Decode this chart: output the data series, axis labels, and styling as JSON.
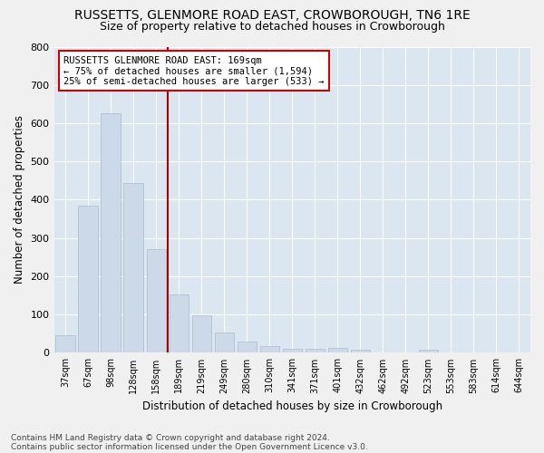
{
  "title": "RUSSETTS, GLENMORE ROAD EAST, CROWBOROUGH, TN6 1RE",
  "subtitle": "Size of property relative to detached houses in Crowborough",
  "xlabel": "Distribution of detached houses by size in Crowborough",
  "ylabel": "Number of detached properties",
  "footnote1": "Contains HM Land Registry data © Crown copyright and database right 2024.",
  "footnote2": "Contains public sector information licensed under the Open Government Licence v3.0.",
  "categories": [
    "37sqm",
    "67sqm",
    "98sqm",
    "128sqm",
    "158sqm",
    "189sqm",
    "219sqm",
    "249sqm",
    "280sqm",
    "310sqm",
    "341sqm",
    "371sqm",
    "401sqm",
    "432sqm",
    "462sqm",
    "492sqm",
    "523sqm",
    "553sqm",
    "583sqm",
    "614sqm",
    "644sqm"
  ],
  "values": [
    47,
    385,
    625,
    443,
    270,
    153,
    98,
    52,
    29,
    17,
    11,
    11,
    14,
    8,
    0,
    0,
    8,
    0,
    0,
    0,
    0
  ],
  "bar_color": "#ccd9e8",
  "bar_edgecolor": "#aabcce",
  "vline_x_idx": 4.5,
  "vline_color": "#aa0000",
  "annotation_text": "RUSSETTS GLENMORE ROAD EAST: 169sqm\n← 75% of detached houses are smaller (1,594)\n25% of semi-detached houses are larger (533) →",
  "annotation_box_edgecolor": "#cc0000",
  "annotation_box_facecolor": "#ffffff",
  "annotation_fontsize": 7.5,
  "ylim": [
    0,
    800
  ],
  "yticks": [
    0,
    100,
    200,
    300,
    400,
    500,
    600,
    700,
    800
  ],
  "axes_facecolor": "#dce6f0",
  "fig_facecolor": "#f0f0f0",
  "grid_color": "#ffffff",
  "title_fontsize": 10,
  "subtitle_fontsize": 9,
  "xlabel_fontsize": 8.5,
  "ylabel_fontsize": 8.5,
  "footnote_fontsize": 6.5
}
